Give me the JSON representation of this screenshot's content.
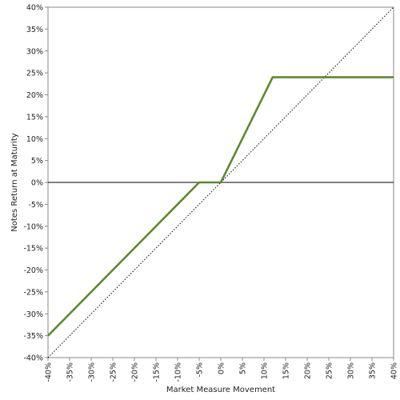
{
  "chart_data": {
    "type": "line",
    "xlabel": "Market Measure Movement",
    "ylabel": "Notes Return at Maturity",
    "xlim": [
      -40,
      40
    ],
    "ylim": [
      -40,
      40
    ],
    "x_ticks": [
      -40,
      -35,
      -30,
      -25,
      -20,
      -15,
      -10,
      -5,
      0,
      5,
      10,
      15,
      20,
      25,
      30,
      35,
      40
    ],
    "y_ticks": [
      -40,
      -35,
      -30,
      -25,
      -20,
      -15,
      -10,
      -5,
      0,
      5,
      10,
      15,
      20,
      25,
      30,
      35,
      40
    ],
    "x_tick_labels": [
      "-40%",
      "-35%",
      "-30%",
      "-25%",
      "-20%",
      "-15%",
      "-10%",
      "-5%",
      "0%",
      "5%",
      "10%",
      "15%",
      "20%",
      "25%",
      "30%",
      "35%",
      "40%"
    ],
    "y_tick_labels": [
      "-40%",
      "-35%",
      "-30%",
      "-25%",
      "-20%",
      "-15%",
      "-10%",
      "-5%",
      "0%",
      "5%",
      "10%",
      "15%",
      "20%",
      "25%",
      "30%",
      "35%",
      "40%"
    ],
    "grid": false,
    "series": [
      {
        "x": [
          -40,
          -5,
          0,
          12,
          40
        ],
        "y": [
          -35,
          0,
          0,
          24,
          24
        ],
        "color": "#5b8a2e",
        "style": "solid"
      },
      {
        "x": [
          -40,
          40
        ],
        "y": [
          -40,
          40
        ],
        "color": "#000000",
        "style": "dotted"
      }
    ],
    "reference_lines": [
      {
        "axis": "y",
        "value": 0,
        "color": "#000000"
      }
    ]
  }
}
